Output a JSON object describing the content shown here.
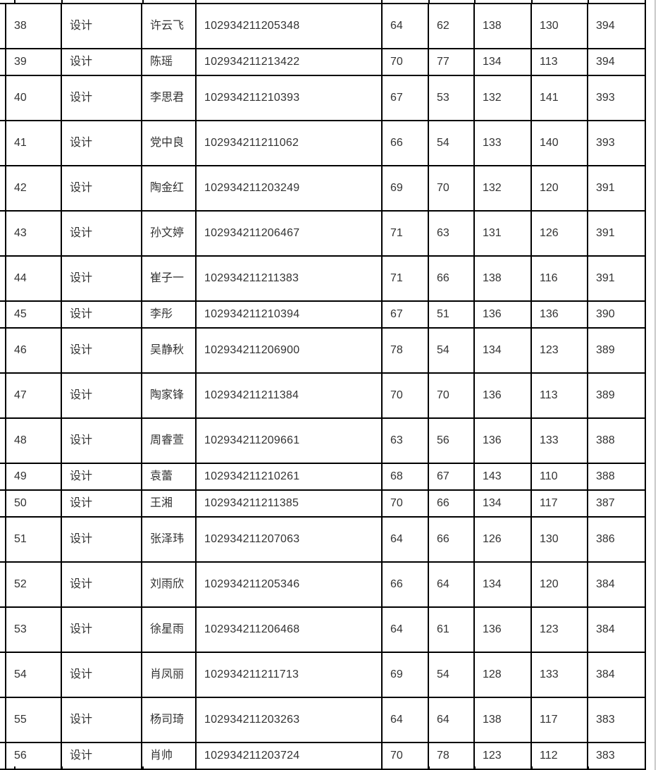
{
  "page": {
    "background": "#ffffff"
  },
  "colors": {
    "border": "#000000",
    "text": "#333333",
    "scrollbar_line": "#c8c8c8"
  },
  "table": {
    "rows": [
      {
        "rank": "38",
        "major": "设计",
        "name": "许云飞",
        "id": "102934211205348",
        "s1": "64",
        "s2": "62",
        "s3": "138",
        "s4": "130",
        "total": "394"
      },
      {
        "rank": "39",
        "major": "设计",
        "name": "陈瑶",
        "id": "102934211213422",
        "s1": "70",
        "s2": "77",
        "s3": "134",
        "s4": "113",
        "total": "394"
      },
      {
        "rank": "40",
        "major": "设计",
        "name": "李思君",
        "id": "102934211210393",
        "s1": "67",
        "s2": "53",
        "s3": "132",
        "s4": "141",
        "total": "393"
      },
      {
        "rank": "41",
        "major": "设计",
        "name": "党中良",
        "id": "102934211211062",
        "s1": "66",
        "s2": "54",
        "s3": "133",
        "s4": "140",
        "total": "393"
      },
      {
        "rank": "42",
        "major": "设计",
        "name": "陶金红",
        "id": "102934211203249",
        "s1": "69",
        "s2": "70",
        "s3": "132",
        "s4": "120",
        "total": "391"
      },
      {
        "rank": "43",
        "major": "设计",
        "name": "孙文婷",
        "id": "102934211206467",
        "s1": "71",
        "s2": "63",
        "s3": "131",
        "s4": "126",
        "total": "391"
      },
      {
        "rank": "44",
        "major": "设计",
        "name": "崔子一",
        "id": "102934211211383",
        "s1": "71",
        "s2": "66",
        "s3": "138",
        "s4": "116",
        "total": "391"
      },
      {
        "rank": "45",
        "major": "设计",
        "name": "李彤",
        "id": "102934211210394",
        "s1": "67",
        "s2": "51",
        "s3": "136",
        "s4": "136",
        "total": "390"
      },
      {
        "rank": "46",
        "major": "设计",
        "name": "吴静秋",
        "id": "102934211206900",
        "s1": "78",
        "s2": "54",
        "s3": "134",
        "s4": "123",
        "total": "389"
      },
      {
        "rank": "47",
        "major": "设计",
        "name": "陶家锋",
        "id": "102934211211384",
        "s1": "70",
        "s2": "70",
        "s3": "136",
        "s4": "113",
        "total": "389"
      },
      {
        "rank": "48",
        "major": "设计",
        "name": "周睿萱",
        "id": "102934211209661",
        "s1": "63",
        "s2": "56",
        "s3": "136",
        "s4": "133",
        "total": "388"
      },
      {
        "rank": "49",
        "major": "设计",
        "name": "袁蕾",
        "id": "102934211210261",
        "s1": "68",
        "s2": "67",
        "s3": "143",
        "s4": "110",
        "total": "388"
      },
      {
        "rank": "50",
        "major": "设计",
        "name": "王湘",
        "id": "102934211211385",
        "s1": "70",
        "s2": "66",
        "s3": "134",
        "s4": "117",
        "total": "387"
      },
      {
        "rank": "51",
        "major": "设计",
        "name": "张泽玮",
        "id": "102934211207063",
        "s1": "64",
        "s2": "66",
        "s3": "126",
        "s4": "130",
        "total": "386"
      },
      {
        "rank": "52",
        "major": "设计",
        "name": "刘雨欣",
        "id": "102934211205346",
        "s1": "66",
        "s2": "64",
        "s3": "134",
        "s4": "120",
        "total": "384"
      },
      {
        "rank": "53",
        "major": "设计",
        "name": "徐星雨",
        "id": "102934211206468",
        "s1": "64",
        "s2": "61",
        "s3": "136",
        "s4": "123",
        "total": "384"
      },
      {
        "rank": "54",
        "major": "设计",
        "name": "肖凤丽",
        "id": "102934211211713",
        "s1": "69",
        "s2": "54",
        "s3": "128",
        "s4": "133",
        "total": "384"
      },
      {
        "rank": "55",
        "major": "设计",
        "name": "杨司琦",
        "id": "102934211203263",
        "s1": "64",
        "s2": "64",
        "s3": "138",
        "s4": "117",
        "total": "383"
      },
      {
        "rank": "56",
        "major": "设计",
        "name": "肖帅",
        "id": "102934211203724",
        "s1": "70",
        "s2": "78",
        "s3": "123",
        "s4": "112",
        "total": "383"
      }
    ]
  }
}
